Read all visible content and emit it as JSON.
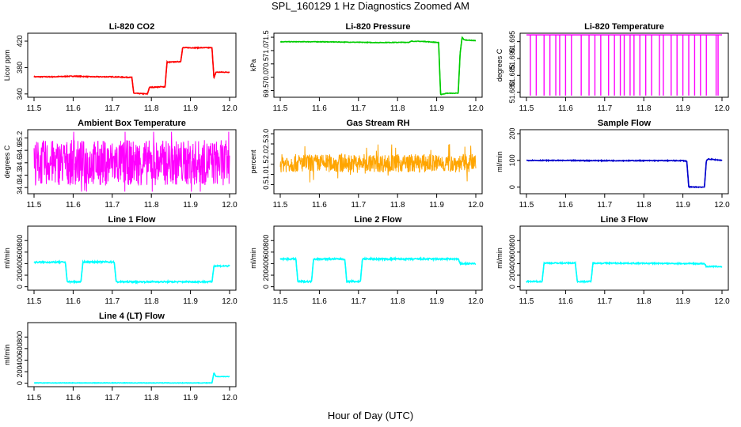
{
  "title": "SPL_160129  1 Hz Diagnostics Zoomed AM",
  "xlabel": "Hour of Day (UTC)",
  "chart_data": [
    {
      "type": "line",
      "title": "Li-820 CO2",
      "xlabel": "",
      "ylabel": "Licor ppm",
      "color": "#ff0000",
      "xlim": [
        11.5,
        12.0
      ],
      "ylim": [
        335,
        432
      ],
      "yticks": [
        340,
        380,
        420
      ],
      "ytick_labels": [
        "340",
        "380",
        "420"
      ],
      "xticks": [
        11.5,
        11.6,
        11.7,
        11.8,
        11.9,
        12.0
      ],
      "xtick_labels": [
        "11.5",
        "11.6",
        "11.7",
        "11.8",
        "11.9",
        "12.0"
      ],
      "x": [
        11.5,
        11.55,
        11.6,
        11.65,
        11.7,
        11.75,
        11.755,
        11.79,
        11.795,
        11.835,
        11.84,
        11.875,
        11.88,
        11.955,
        11.96,
        11.965,
        12.0
      ],
      "y": [
        366,
        366,
        367,
        366,
        366,
        365,
        341,
        340,
        350,
        351,
        388,
        389,
        410,
        410,
        364,
        373,
        373
      ],
      "noise": 0.6
    },
    {
      "type": "line",
      "title": "Li-820 Pressure",
      "xlabel": "",
      "ylabel": "kPa",
      "color": "#00cc00",
      "xlim": [
        11.5,
        12.0
      ],
      "ylim": [
        69.25,
        71.65
      ],
      "yticks": [
        69.5,
        70.0,
        70.5,
        71.0,
        71.5
      ],
      "ytick_labels": [
        "69.5",
        "70.0",
        "70.5",
        "71.0",
        "71.5"
      ],
      "xticks": [
        11.5,
        11.6,
        11.7,
        11.8,
        11.9,
        12.0
      ],
      "xtick_labels": [
        "11.5",
        "11.6",
        "11.7",
        "11.8",
        "11.9",
        "12.0"
      ],
      "x": [
        11.5,
        11.6,
        11.75,
        11.83,
        11.835,
        11.87,
        11.905,
        11.91,
        11.925,
        11.955,
        11.96,
        11.965,
        11.97,
        12.0
      ],
      "y": [
        71.33,
        71.33,
        71.3,
        71.31,
        71.35,
        71.34,
        71.3,
        69.35,
        69.4,
        69.4,
        70.9,
        71.5,
        71.4,
        71.37
      ],
      "noise": 0.01
    },
    {
      "type": "spikes",
      "title": "Li-820 Temperature",
      "xlabel": "",
      "ylabel": "degrees C",
      "color": "#ff00ff",
      "xlim": [
        11.5,
        12.0
      ],
      "ylim": [
        51.6785,
        51.6975
      ],
      "yticks": [
        51.68,
        51.685,
        51.69,
        51.695
      ],
      "ytick_labels": [
        "51.680",
        "51.685",
        "51.690",
        "51.695"
      ],
      "xticks": [
        11.5,
        11.6,
        11.7,
        11.8,
        11.9,
        12.0
      ],
      "xtick_labels": [
        "11.5",
        "11.6",
        "11.7",
        "11.8",
        "11.9",
        "12.0"
      ],
      "baseline": 51.697,
      "low": 51.679,
      "spike_x": [
        11.51,
        11.525,
        11.545,
        11.56,
        11.575,
        11.585,
        11.6,
        11.615,
        11.64,
        11.66,
        11.675,
        11.69,
        11.71,
        11.725,
        11.74,
        11.75,
        11.765,
        11.775,
        11.79,
        11.805,
        11.82,
        11.84,
        11.85,
        11.87,
        11.885,
        11.9,
        11.915,
        11.93,
        11.945,
        11.96,
        11.985,
        11.99
      ]
    },
    {
      "type": "noise",
      "title": "Ambient Box Temperature",
      "xlabel": "",
      "ylabel": "degrees C",
      "color": "#ff00ff",
      "xlim": [
        11.5,
        12.0
      ],
      "ylim": [
        33.85,
        35.4
      ],
      "yticks": [
        34.0,
        34.3,
        34.6,
        34.9,
        35.2
      ],
      "ytick_labels": [
        "34.0",
        "34.3",
        "34.6",
        "34.9",
        "35.2"
      ],
      "xticks": [
        11.5,
        11.6,
        11.7,
        11.8,
        11.9,
        12.0
      ],
      "xtick_labels": [
        "11.5",
        "11.6",
        "11.7",
        "11.8",
        "11.9",
        "12.0"
      ],
      "center": 34.6,
      "spread": 0.55,
      "min": 33.9,
      "max": 35.35
    },
    {
      "type": "noise",
      "title": "Gas Stream RH",
      "xlabel": "",
      "ylabel": "percent",
      "color": "#ffa500",
      "xlim": [
        11.5,
        12.0
      ],
      "ylim": [
        0.05,
        3.2
      ],
      "yticks": [
        0.5,
        1.0,
        1.5,
        2.0,
        2.5,
        3.0
      ],
      "ytick_labels": [
        "0.5",
        "1.0",
        "1.5",
        "2.0",
        "2.5",
        "3.0"
      ],
      "xticks": [
        11.5,
        11.6,
        11.7,
        11.8,
        11.9,
        12.0
      ],
      "xtick_labels": [
        "11.5",
        "11.6",
        "11.7",
        "11.8",
        "11.9",
        "12.0"
      ],
      "center": 1.55,
      "spread": 0.45,
      "min": 0.1,
      "max": 3.0
    },
    {
      "type": "line",
      "title": "Sample Flow",
      "xlabel": "",
      "ylabel": "ml/min",
      "color": "#0000cc",
      "xlim": [
        11.5,
        12.0
      ],
      "ylim": [
        -25,
        215
      ],
      "yticks": [
        0,
        100,
        200
      ],
      "ytick_labels": [
        "0",
        "100",
        "200"
      ],
      "xticks": [
        11.5,
        11.6,
        11.7,
        11.8,
        11.9,
        12.0
      ],
      "xtick_labels": [
        "11.5",
        "11.6",
        "11.7",
        "11.8",
        "11.9",
        "12.0"
      ],
      "x": [
        11.5,
        11.7,
        11.9,
        11.91,
        11.915,
        11.955,
        11.96,
        11.965,
        12.0
      ],
      "y": [
        100,
        99,
        99,
        97,
        0,
        0,
        98,
        105,
        100
      ],
      "noise": 1.5
    },
    {
      "type": "line",
      "title": "Line 1 Flow",
      "xlabel": "",
      "ylabel": "ml/min",
      "color": "#00ffff",
      "xlim": [
        11.5,
        12.0
      ],
      "ylim": [
        -60,
        1050
      ],
      "yticks": [
        0,
        200,
        400,
        600,
        800
      ],
      "ytick_labels": [
        "0",
        "200",
        "400",
        "600",
        "800"
      ],
      "xticks": [
        11.5,
        11.6,
        11.7,
        11.8,
        11.9,
        12.0
      ],
      "xtick_labels": [
        "11.5",
        "11.6",
        "11.7",
        "11.8",
        "11.9",
        "12.0"
      ],
      "x": [
        11.5,
        11.58,
        11.585,
        11.62,
        11.625,
        11.705,
        11.71,
        11.955,
        11.96,
        12.0
      ],
      "y": [
        425,
        425,
        85,
        85,
        430,
        430,
        85,
        85,
        360,
        360
      ],
      "noise": 12
    },
    {
      "type": "line",
      "title": "Line 2 Flow",
      "xlabel": "",
      "ylabel": "ml/min",
      "color": "#00ffff",
      "xlim": [
        11.5,
        12.0
      ],
      "ylim": [
        -60,
        1050
      ],
      "yticks": [
        0,
        200,
        400,
        600,
        800
      ],
      "ytick_labels": [
        "0",
        "200",
        "400",
        "600",
        "800"
      ],
      "xticks": [
        11.5,
        11.6,
        11.7,
        11.8,
        11.9,
        12.0
      ],
      "xtick_labels": [
        "11.5",
        "11.6",
        "11.7",
        "11.8",
        "11.9",
        "12.0"
      ],
      "x": [
        11.5,
        11.54,
        11.545,
        11.58,
        11.585,
        11.665,
        11.67,
        11.705,
        11.71,
        11.955,
        11.96,
        12.0
      ],
      "y": [
        480,
        480,
        90,
        90,
        480,
        480,
        90,
        90,
        480,
        480,
        400,
        400
      ],
      "noise": 14
    },
    {
      "type": "line",
      "title": "Line 3 Flow",
      "xlabel": "",
      "ylabel": "ml/min",
      "color": "#00ffff",
      "xlim": [
        11.5,
        12.0
      ],
      "ylim": [
        -60,
        1050
      ],
      "yticks": [
        0,
        200,
        400,
        600,
        800
      ],
      "ytick_labels": [
        "0",
        "200",
        "400",
        "600",
        "800"
      ],
      "xticks": [
        11.5,
        11.6,
        11.7,
        11.8,
        11.9,
        12.0
      ],
      "xtick_labels": [
        "11.5",
        "11.6",
        "11.7",
        "11.8",
        "11.9",
        "12.0"
      ],
      "x": [
        11.5,
        11.54,
        11.545,
        11.625,
        11.63,
        11.665,
        11.67,
        11.955,
        11.96,
        12.0
      ],
      "y": [
        90,
        90,
        410,
        410,
        90,
        90,
        410,
        400,
        350,
        350
      ],
      "noise": 10
    },
    {
      "type": "line",
      "title": "Line 4 (LT) Flow",
      "xlabel": "",
      "ylabel": "ml/min",
      "color": "#00ffff",
      "xlim": [
        11.5,
        12.0
      ],
      "ylim": [
        -60,
        1050
      ],
      "yticks": [
        0,
        200,
        400,
        600,
        800
      ],
      "ytick_labels": [
        "0",
        "200",
        "400",
        "600",
        "800"
      ],
      "xticks": [
        11.5,
        11.6,
        11.7,
        11.8,
        11.9,
        12.0
      ],
      "xtick_labels": [
        "11.5",
        "11.6",
        "11.7",
        "11.8",
        "11.9",
        "12.0"
      ],
      "x": [
        11.5,
        11.955,
        11.96,
        11.965,
        12.0
      ],
      "y": [
        5,
        5,
        180,
        115,
        115
      ],
      "noise": 4
    }
  ]
}
